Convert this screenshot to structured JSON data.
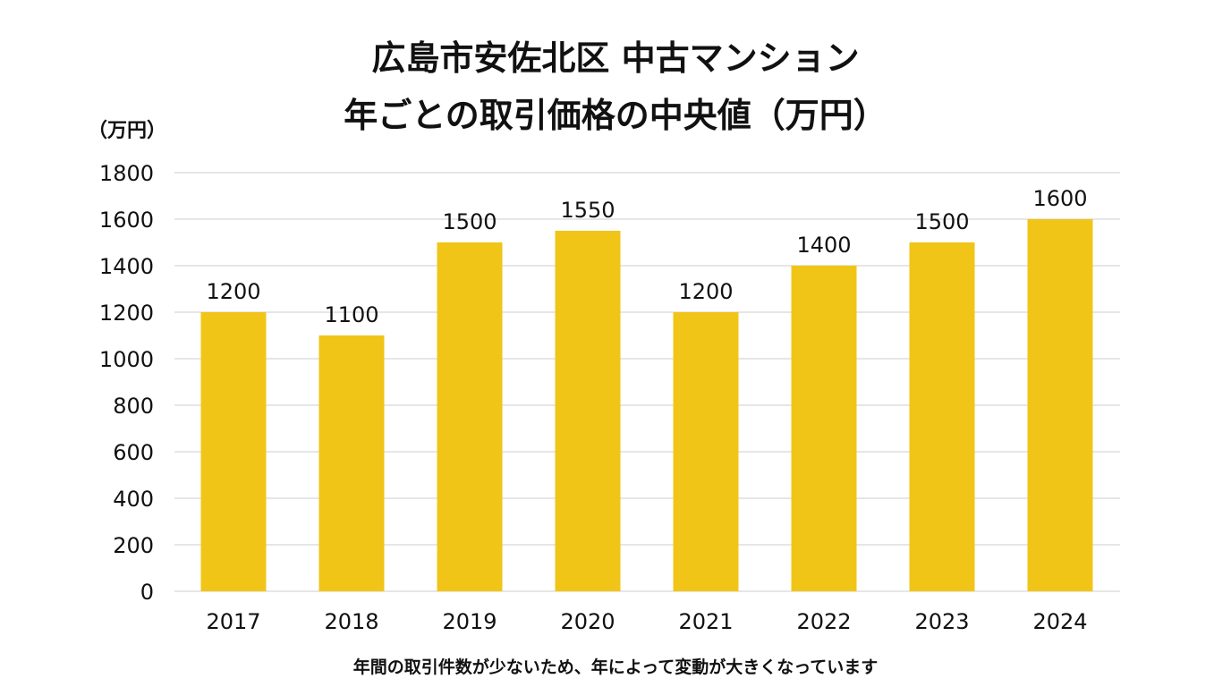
{
  "chart_data": {
    "type": "bar",
    "title_lines": [
      "広島市安佐北区 中古マンション",
      "年ごとの取引価格の中央値（万円）"
    ],
    "y_unit_label": "（万円）",
    "categories": [
      "2017",
      "2018",
      "2019",
      "2020",
      "2021",
      "2022",
      "2023",
      "2024"
    ],
    "values": [
      1200,
      1100,
      1500,
      1550,
      1200,
      1400,
      1500,
      1600
    ],
    "data_labels": [
      "1200",
      "1100",
      "1500",
      "1550",
      "1200",
      "1400",
      "1500",
      "1600"
    ],
    "ylim": [
      0,
      1800
    ],
    "yticks": [
      0,
      200,
      400,
      600,
      800,
      1000,
      1200,
      1400,
      1600,
      1800
    ],
    "grid": true,
    "bar_color": "#F1C517",
    "footnote": "年間の取引件数が少ないため、年によって変動が大きくなっています"
  }
}
